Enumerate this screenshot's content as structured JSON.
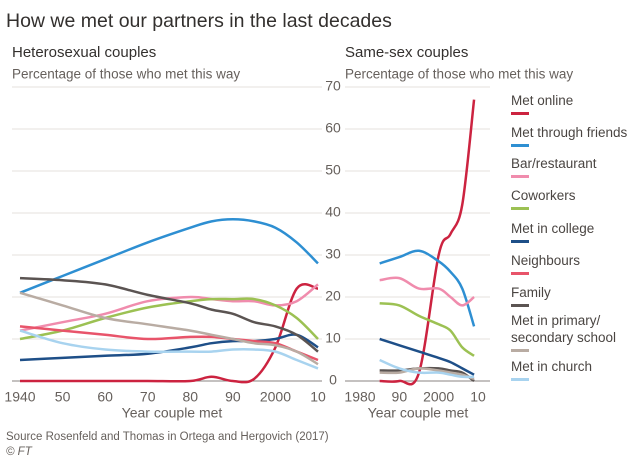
{
  "title": "How we met our partners in the last decades",
  "source": "Source Rosenfeld and Thomas in Ortega and Hergovich (2017)",
  "credit": "© FT",
  "chart_data": [
    {
      "type": "line",
      "title": "Heterosexual couples",
      "subtitle": "Percentage of those who met this way",
      "x_label": "Year couple met",
      "x": [
        1940,
        1950,
        1960,
        1970,
        1980,
        1985,
        1990,
        1995,
        2000,
        2005,
        2010
      ],
      "xlim": [
        1940,
        2010
      ],
      "xticks": [
        1940,
        {
          "value": 1950,
          "label": "50"
        },
        {
          "value": 1960,
          "label": "60"
        },
        {
          "value": 1970,
          "label": "70"
        },
        {
          "value": 1980,
          "label": "80"
        },
        {
          "value": 1990,
          "label": "90"
        },
        2000,
        {
          "value": 2010,
          "label": "10"
        }
      ],
      "ylim": [
        0,
        70
      ],
      "yticks": [
        0,
        10,
        20,
        30,
        40,
        50,
        60,
        70
      ],
      "grid": true,
      "series": [
        {
          "name": "Met online",
          "color": "#cc2340",
          "values": [
            0,
            0,
            0,
            0,
            0,
            1,
            0,
            0.5,
            8,
            22,
            22
          ]
        },
        {
          "name": "Met through friends",
          "color": "#2e8fd2",
          "values": [
            21,
            25,
            29,
            33,
            36.5,
            38,
            38.5,
            38,
            36.5,
            33,
            28
          ]
        },
        {
          "name": "Bar/restaurant",
          "color": "#f08cad",
          "values": [
            12,
            14,
            16,
            19,
            20,
            19.5,
            19,
            19,
            18,
            19,
            23
          ]
        },
        {
          "name": "Coworkers",
          "color": "#9cc153",
          "values": [
            10,
            12,
            15,
            17.5,
            19,
            19.5,
            19.5,
            19.5,
            18,
            15,
            10
          ]
        },
        {
          "name": "Met in college",
          "color": "#1e4f88",
          "values": [
            5,
            5.5,
            6,
            6.5,
            8,
            9,
            9.5,
            9.5,
            10,
            11,
            8
          ]
        },
        {
          "name": "Neighbours",
          "color": "#e8546a",
          "values": [
            13,
            12,
            11,
            10,
            10.5,
            10.5,
            10,
            9.5,
            9,
            7,
            5
          ]
        },
        {
          "name": "Family",
          "color": "#5b5452",
          "values": [
            24.5,
            24,
            23,
            20.5,
            18.5,
            17,
            16,
            14,
            13,
            11,
            7
          ]
        },
        {
          "name": "Met in primary/ secondary school",
          "color": "#b9aca3",
          "values": [
            21,
            18,
            15,
            13.5,
            12,
            11,
            10,
            9,
            8.5,
            7,
            4
          ]
        },
        {
          "name": "Met in church",
          "color": "#a8d3ef",
          "values": [
            12,
            9,
            7.5,
            7,
            7,
            7,
            7.5,
            7.5,
            7,
            5,
            3
          ]
        }
      ]
    },
    {
      "type": "line",
      "title": "Same-sex couples",
      "subtitle": "Percentage of those who met this way",
      "x_label": "Year couple met",
      "x": [
        1985,
        1990,
        1995,
        2000,
        2003,
        2006,
        2009
      ],
      "xlim": [
        1980,
        2010
      ],
      "xticks": [
        1980,
        {
          "value": 1990,
          "label": "90"
        },
        2000,
        {
          "value": 2010,
          "label": "10"
        }
      ],
      "ylim": [
        0,
        70
      ],
      "yticks": [
        0,
        10,
        20,
        30,
        40,
        50,
        60,
        70
      ],
      "grid": true,
      "series": [
        {
          "values": [
            0,
            0,
            2,
            30,
            35,
            42,
            67
          ]
        },
        {
          "values": [
            28,
            29.5,
            31,
            28.5,
            26,
            22,
            13
          ]
        },
        {
          "values": [
            24,
            24.5,
            22,
            22,
            20,
            18,
            20
          ]
        },
        {
          "values": [
            18.5,
            18,
            15.5,
            13.5,
            12,
            8,
            6
          ]
        },
        {
          "values": [
            10,
            8.5,
            7,
            5.5,
            4.5,
            3,
            1.5
          ]
        },
        {
          "values": [
            null,
            null,
            null,
            null,
            null,
            null,
            null
          ]
        },
        {
          "values": [
            2.5,
            2.5,
            3,
            3,
            2.5,
            2,
            0
          ]
        },
        {
          "values": [
            2,
            2,
            3,
            2.5,
            2,
            1.5,
            0.5
          ]
        },
        {
          "values": [
            5,
            3,
            2,
            2,
            1.5,
            1,
            1
          ]
        }
      ]
    }
  ]
}
